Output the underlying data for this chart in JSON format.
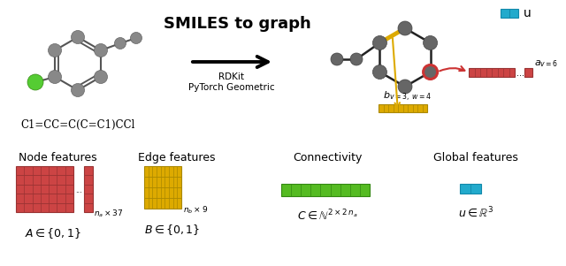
{
  "bg_color": "#ffffff",
  "title_text": "SMILES to graph",
  "smiles_text": "C1=CC=C(C=C1)CCl",
  "node_features_title": "Node features",
  "edge_features_title": "Edge features",
  "connectivity_title": "Connectivity",
  "global_features_title": "Global features",
  "red_color": "#cc4444",
  "red_dark": "#993333",
  "yellow_color": "#ddaa00",
  "yellow_dark": "#aa8800",
  "green_color": "#55bb22",
  "green_dark": "#338811",
  "cyan_color": "#22aacc",
  "cyan_dark": "#1188aa",
  "graph_node_color": "#666666",
  "red_highlight": "#cc3333",
  "arrow_color": "#cc3333",
  "yellow_arrow_color": "#ddaa00"
}
